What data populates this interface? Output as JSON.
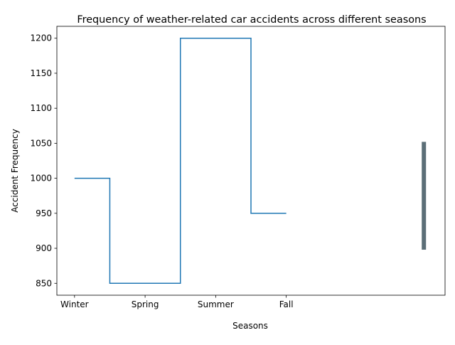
{
  "chart_data": {
    "type": "line",
    "drawstyle": "steps-mid",
    "title": "Frequency of weather-related car accidents across different seasons",
    "xlabel": "Seasons",
    "ylabel": "Accident Frequency",
    "categories": [
      "Winter",
      "Spring",
      "Summer",
      "Fall"
    ],
    "series": [
      {
        "values": [
          1000,
          850,
          1200,
          950
        ],
        "color": "#1f77b4"
      }
    ],
    "y_ticks": [
      850,
      900,
      950,
      1000,
      1050,
      1100,
      1150,
      1200
    ],
    "ylim": [
      833,
      1217
    ],
    "xlim": [
      -0.25,
      5.25
    ],
    "extra_bar": {
      "x": 4.95,
      "y_range": [
        898,
        1052
      ],
      "color": "#5b6e77"
    },
    "grid": false,
    "legend": "none"
  }
}
